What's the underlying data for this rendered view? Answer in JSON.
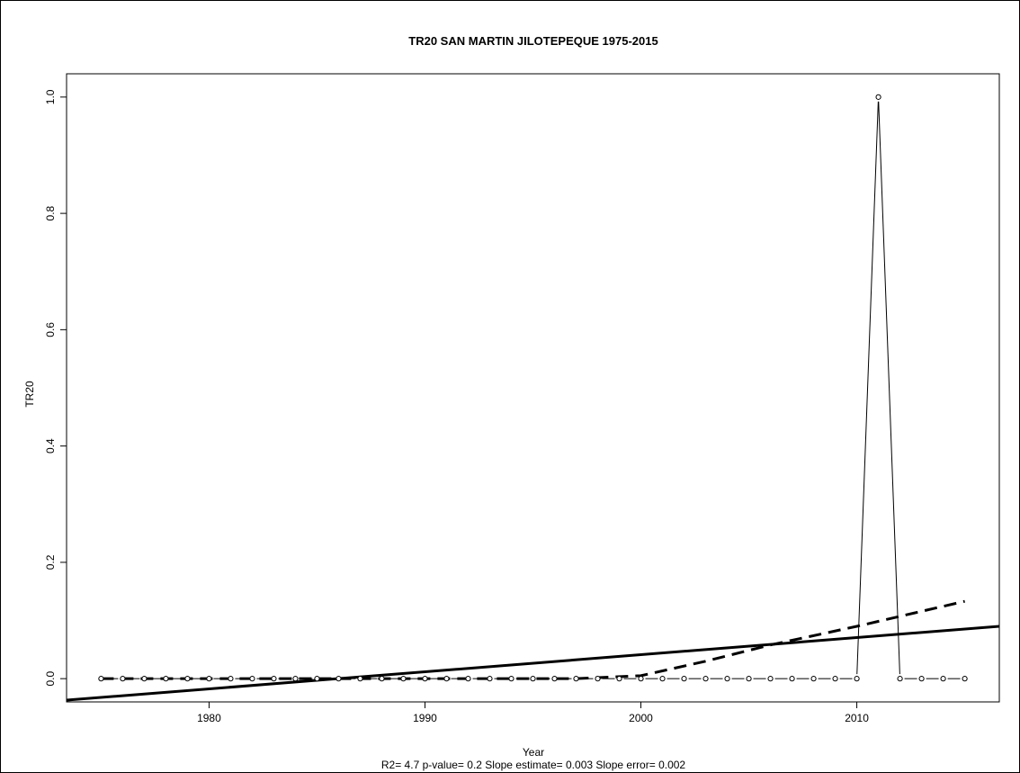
{
  "chart_data": {
    "type": "line",
    "title": "TR20   SAN MARTIN JILOTEPEQUE 1975-2015",
    "xlabel": "Year",
    "ylabel": "TR20",
    "subtitle": "R2= 4.7  p-value= 0.2  Slope estimate= 0.003  Slope error= 0.002",
    "xlim": [
      1973.4,
      2016.6
    ],
    "ylim": [
      -0.04,
      1.04
    ],
    "x_ticks": [
      1980,
      1990,
      2000,
      2010
    ],
    "y_ticks": [
      0.0,
      0.2,
      0.4,
      0.6,
      0.8,
      1.0
    ],
    "x_tick_labels": [
      "1980",
      "1990",
      "2000",
      "2010"
    ],
    "y_tick_labels": [
      "0.0",
      "0.2",
      "0.4",
      "0.6",
      "0.8",
      "1.0"
    ],
    "grid": false,
    "x": [
      1975,
      1976,
      1977,
      1978,
      1979,
      1980,
      1981,
      1982,
      1983,
      1984,
      1985,
      1986,
      1987,
      1988,
      1989,
      1990,
      1991,
      1992,
      1993,
      1994,
      1995,
      1996,
      1997,
      1998,
      1999,
      2000,
      2001,
      2002,
      2003,
      2004,
      2005,
      2006,
      2007,
      2008,
      2009,
      2010,
      2011,
      2012,
      2013,
      2014,
      2015
    ],
    "series": [
      {
        "style": "observed",
        "values": [
          0,
          0,
          0,
          0,
          0,
          0,
          0,
          0,
          0,
          0,
          0,
          0,
          0,
          0,
          0,
          0,
          0,
          0,
          0,
          0,
          0,
          0,
          0,
          0,
          0,
          0,
          0,
          0,
          0,
          0,
          0,
          0,
          0,
          0,
          0,
          0,
          1,
          0,
          0,
          0,
          0
        ]
      },
      {
        "style": "linear-trend",
        "x": [
          1973.4,
          2016.6
        ],
        "values": [
          -0.037,
          0.09
        ]
      },
      {
        "style": "smooth-trend",
        "x": [
          1975,
          1980,
          1985,
          1990,
          1995,
          1997,
          2000,
          2003,
          2006,
          2010,
          2015
        ],
        "values": [
          0,
          0,
          0,
          0,
          0,
          0,
          0.005,
          0.03,
          0.058,
          0.09,
          0.133
        ]
      }
    ]
  }
}
